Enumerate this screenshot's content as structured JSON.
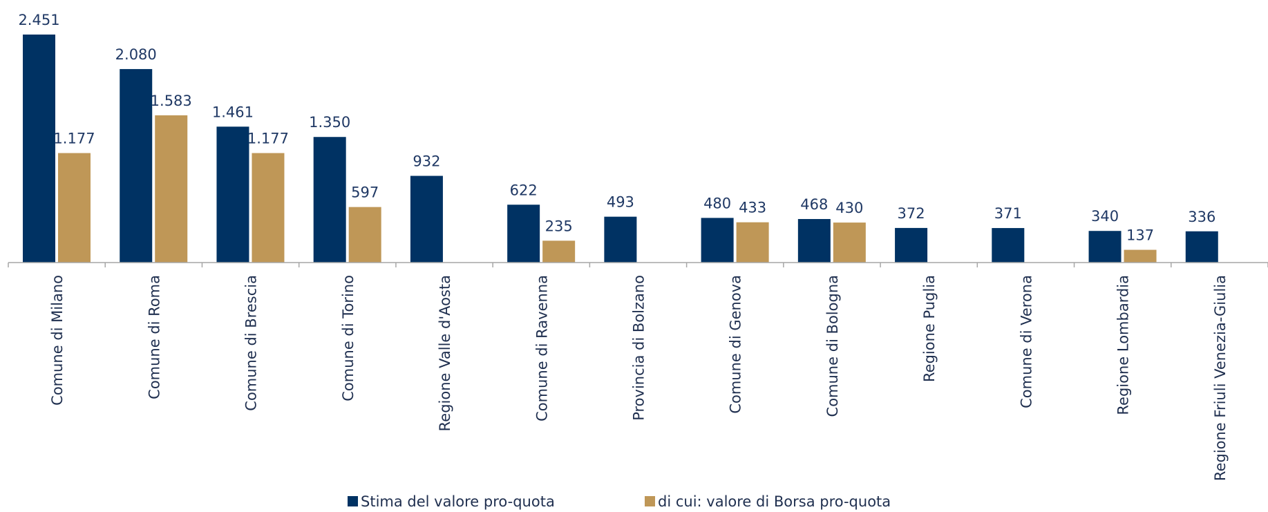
{
  "chart_data": {
    "type": "bar",
    "categories": [
      "Comune di Milano",
      "Comune di Roma",
      "Comune di Brescia",
      "Comune di Torino",
      "Regione Valle d'Aosta",
      "Comune di Ravenna",
      "Provincia di Bolzano",
      "Comune di Genova",
      "Comune di Bologna",
      "Regione Puglia",
      "Comune di Verona",
      "Regione Lombardia",
      "Regione Friuli Venezia-Giulia"
    ],
    "series": [
      {
        "name": "Stima del valore pro-quota",
        "color": "#003263",
        "values": [
          2451,
          2080,
          1461,
          1350,
          932,
          622,
          493,
          480,
          468,
          372,
          371,
          340,
          336
        ],
        "value_labels": [
          "2.451",
          "2.080",
          "1.461",
          "1.350",
          "932",
          "622",
          "493",
          "480",
          "468",
          "372",
          "371",
          "340",
          "336"
        ]
      },
      {
        "name": "di cui: valore di Borsa pro-quota",
        "color": "#bf9757",
        "values": [
          1177,
          1583,
          1177,
          597,
          null,
          235,
          null,
          433,
          430,
          null,
          null,
          137,
          null
        ],
        "value_labels": [
          "1.177",
          "1.583",
          "1.177",
          "597",
          null,
          "235",
          null,
          "433",
          "430",
          null,
          null,
          "137",
          null
        ]
      }
    ],
    "legend": "bottom"
  }
}
